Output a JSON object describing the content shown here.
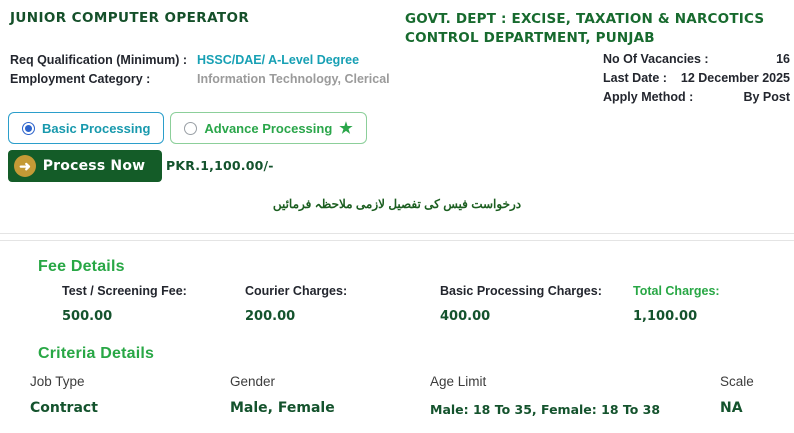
{
  "header": {
    "job_title": "JUNIOR COMPUTER OPERATOR",
    "dept_title": "GOVT. DEPT : EXCISE, TAXATION & NARCOTICS CONTROL DEPARTMENT, PUNJAB",
    "qual_label": "Req Qualification (Minimum) :",
    "qual_value": "HSSC/DAE/ A-Level Degree",
    "cat_label": "Employment Category :",
    "cat_value": "Information Technology, Clerical",
    "vacancies_label": "No Of Vacancies :",
    "vacancies_value": "16",
    "last_date_label": "Last Date :",
    "last_date_value": "12 December 2025",
    "apply_label": "Apply Method :",
    "apply_value": "By Post"
  },
  "processing": {
    "options": [
      {
        "label": "Basic Processing",
        "selected": true
      },
      {
        "label": "Advance Processing",
        "selected": false
      }
    ],
    "star_icon": "★",
    "arrow_icon": "➜",
    "button_label": "Process Now",
    "price": "PKR.1,100.00/-",
    "urdu_note": "درخواست فیس کی تفصیل لازمی ملاحظہ فرمائیں"
  },
  "fee_details": {
    "heading": "Fee Details",
    "items": [
      {
        "label": "Test / Screening Fee:",
        "value": "500.00"
      },
      {
        "label": "Courier Charges:",
        "value": "200.00"
      },
      {
        "label": "Basic Processing Charges:",
        "value": "400.00"
      },
      {
        "label": "Total Charges:",
        "value": "1,100.00"
      }
    ]
  },
  "criteria_details": {
    "heading": "Criteria Details",
    "items": [
      {
        "label": "Job Type",
        "value": "Contract"
      },
      {
        "label": "Gender",
        "value": "Male, Female"
      },
      {
        "label": "Age Limit",
        "value": "Male: 18 To 35, Female: 18 To 38"
      },
      {
        "label": "Scale",
        "value": "NA"
      }
    ]
  },
  "colors": {
    "title_green": "#15502a",
    "heading_green": "#28a745",
    "value_green": "#14532d",
    "teal": "#17a0b4",
    "muted_gray": "#9b9b9b",
    "button_green": "#145c28",
    "gold": "#c49a36",
    "basic_border_blue": "#2b9ecb",
    "radio_blue": "#2d64cc",
    "advance_green": "#2aa64a"
  }
}
